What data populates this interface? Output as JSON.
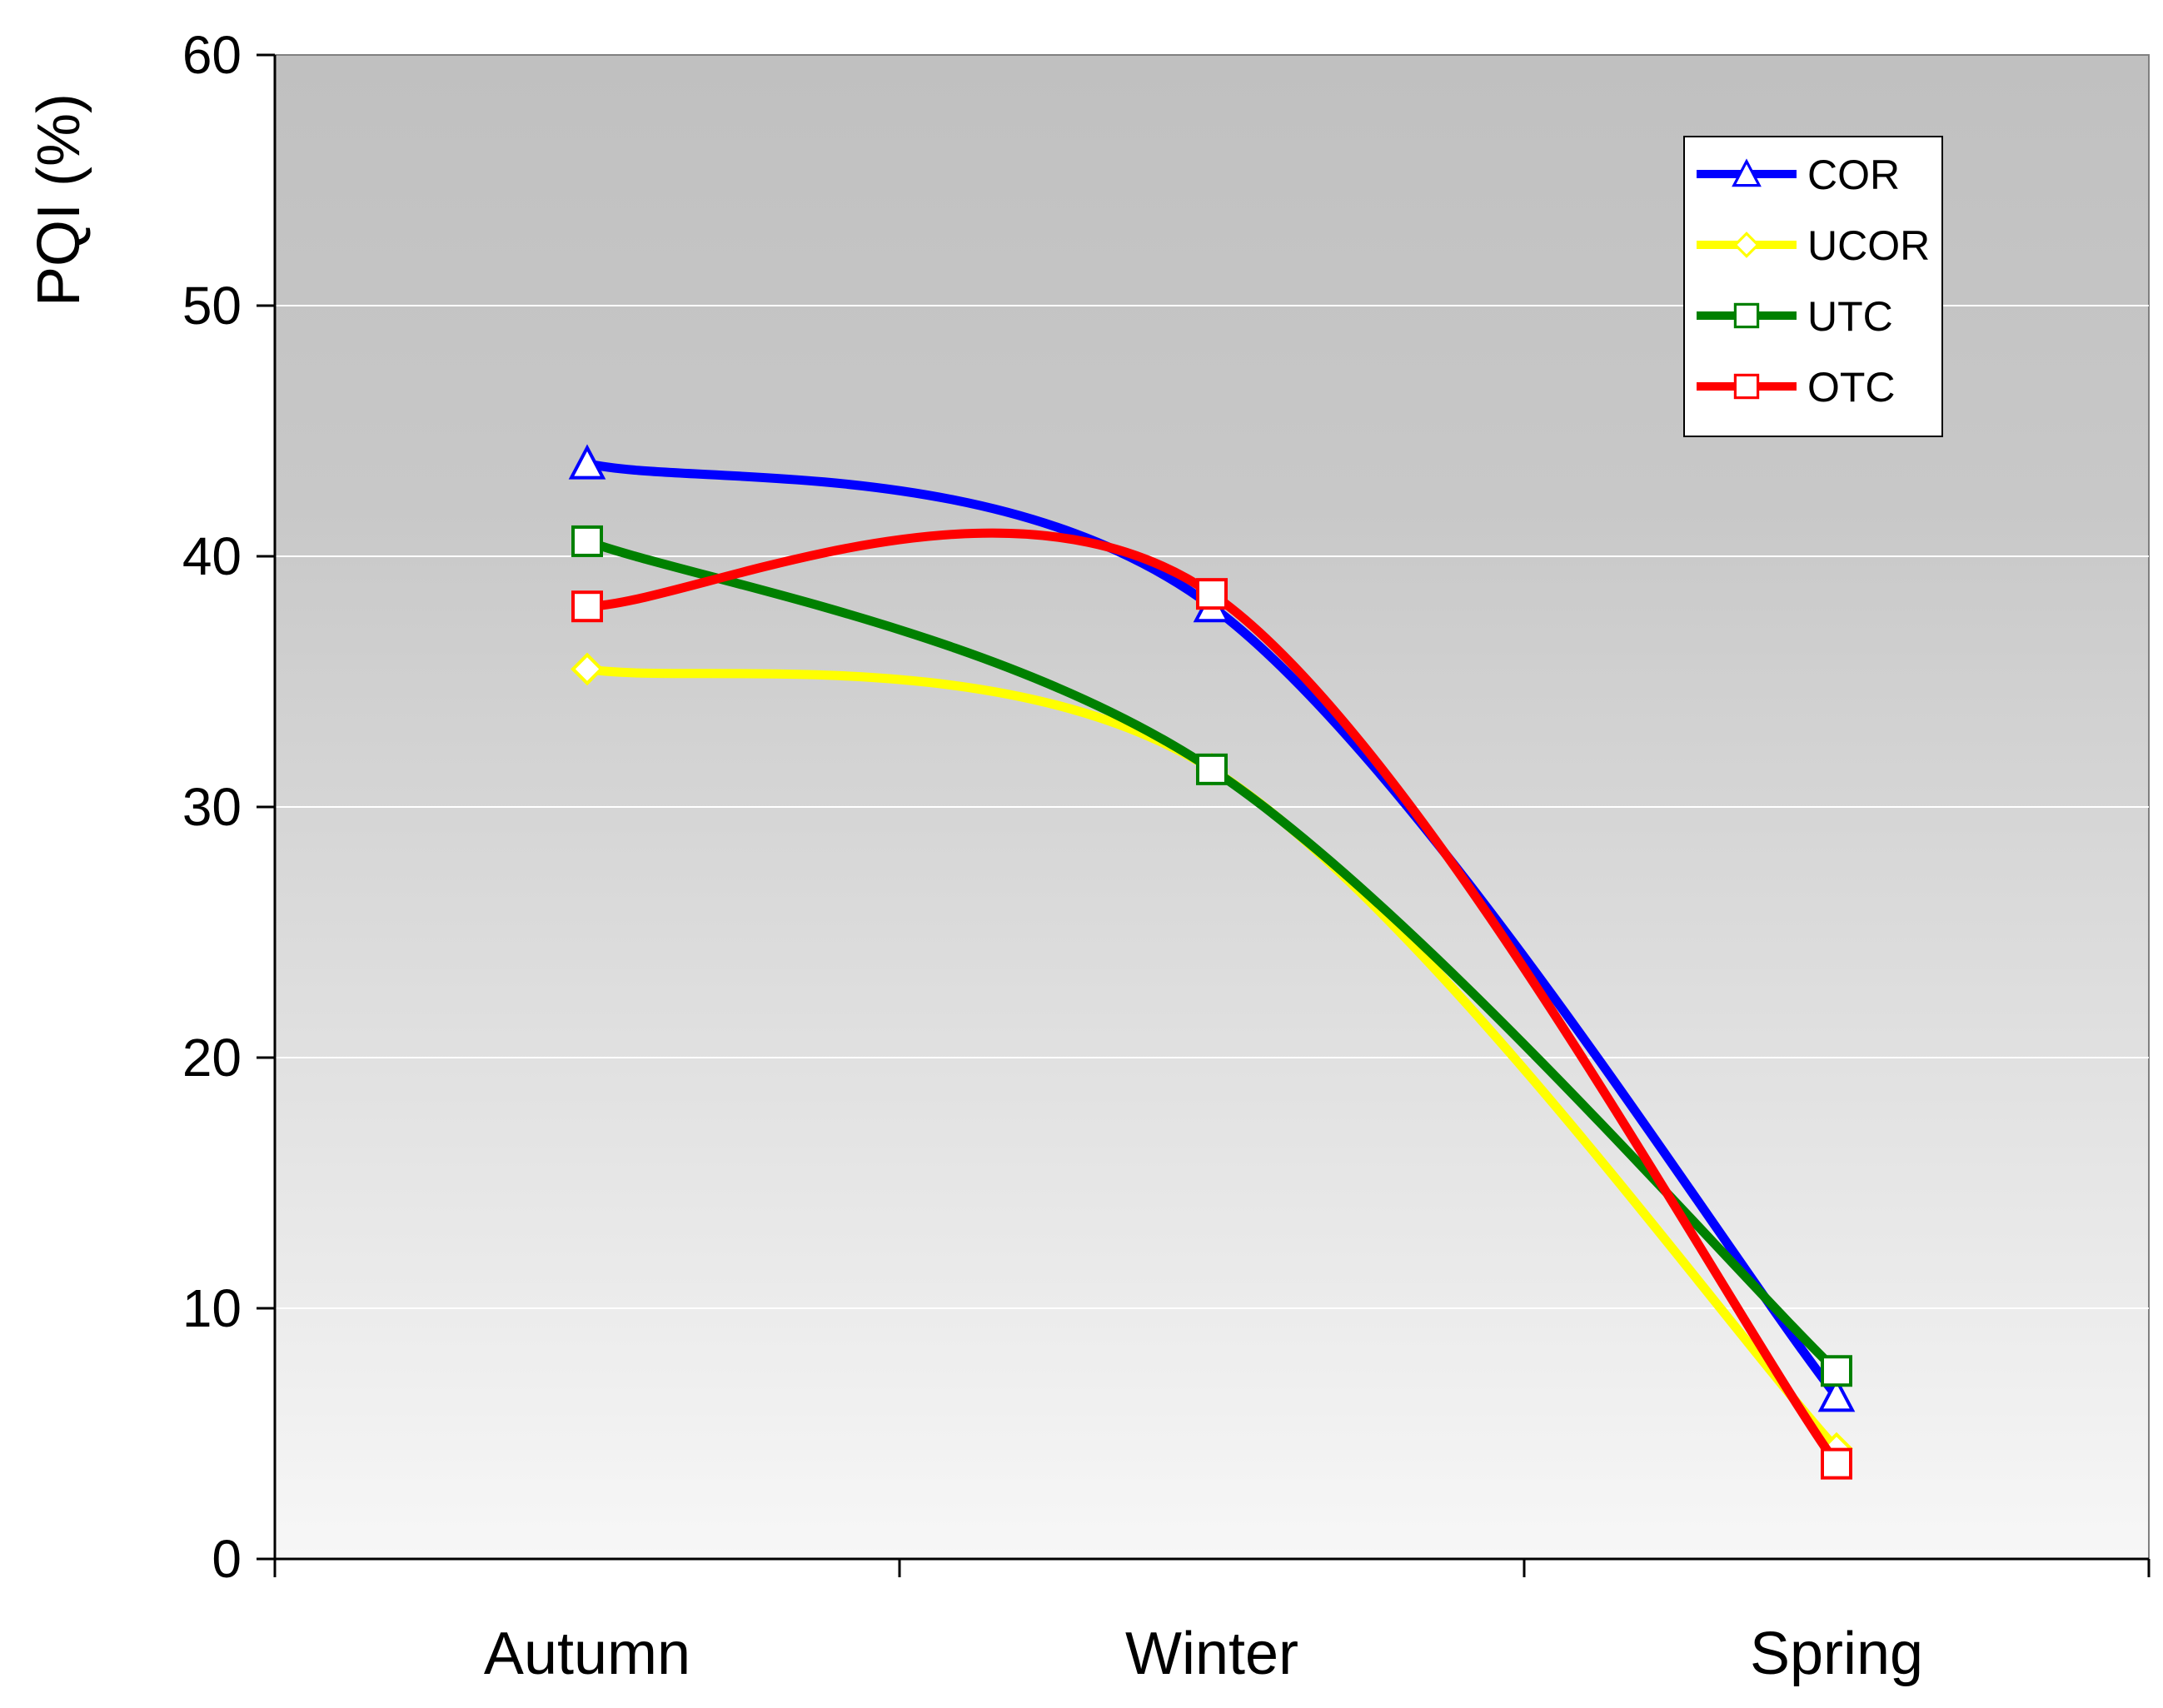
{
  "chart_data": {
    "type": "line",
    "title": "",
    "xlabel": "",
    "ylabel": "PQI (%)",
    "categories": [
      "Autumn",
      "Winter",
      "Spring"
    ],
    "ylim": [
      0,
      60
    ],
    "yticks": [
      0,
      10,
      20,
      30,
      40,
      50,
      60
    ],
    "grid": "horizontal",
    "smooth": true,
    "legend_position": "top-right",
    "series": [
      {
        "name": "COR",
        "values": [
          43.7,
          38.0,
          6.5
        ],
        "color": "#0000FF",
        "marker": "triangle"
      },
      {
        "name": "UCOR",
        "values": [
          35.5,
          31.5,
          4.4
        ],
        "color": "#FFFF00",
        "marker": "diamond"
      },
      {
        "name": "UTC",
        "values": [
          40.6,
          31.5,
          7.5
        ],
        "color": "#008000",
        "marker": "square"
      },
      {
        "name": "OTC",
        "values": [
          38.0,
          38.5,
          3.8
        ],
        "color": "#FF0000",
        "marker": "square"
      }
    ]
  }
}
